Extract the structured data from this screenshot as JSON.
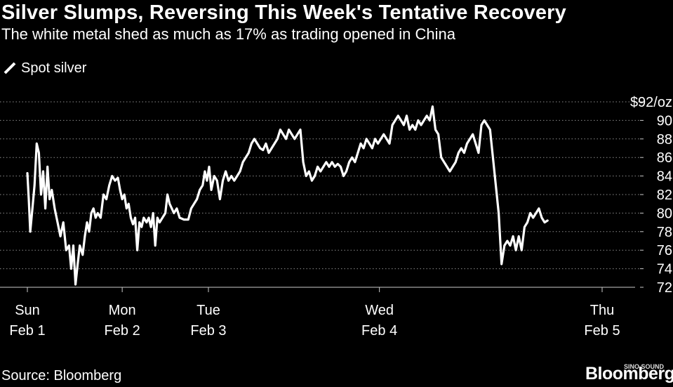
{
  "header": {
    "title": "Silver Slumps, Reversing This Week's Tentative Recovery",
    "subtitle": "The white metal shed as much as 17% as trading opened in China"
  },
  "legend": {
    "label": "Spot silver"
  },
  "footer": {
    "source": "Source: Bloomberg",
    "logo": "Bloomberg",
    "watermark": "SINO SOUND"
  },
  "colors": {
    "background": "#000000",
    "line": "#ffffff",
    "grid": "#8c8c8c",
    "text": "#ffffff"
  },
  "chart_data": {
    "type": "line",
    "title": "Silver Slumps, Reversing This Week's Tentative Recovery",
    "subtitle": "The white metal shed as much as 17% as trading opened in China",
    "xlabel": "",
    "ylabel": "$/oz",
    "ylim": [
      72,
      92
    ],
    "xlim": [
      -0.05,
      4.1
    ],
    "y_ticks": [
      72,
      74,
      76,
      78,
      80,
      82,
      84,
      86,
      88,
      90,
      92
    ],
    "y_tick_labels": [
      "72",
      "74",
      "76",
      "78",
      "80",
      "82",
      "84",
      "86",
      "88",
      "90",
      "$92/oz"
    ],
    "x_ticks": [
      {
        "x": 0.0,
        "day": "Sun",
        "date": "Feb 1"
      },
      {
        "x": 0.66,
        "day": "Mon",
        "date": "Feb 2"
      },
      {
        "x": 1.26,
        "day": "Tue",
        "date": "Feb 3"
      },
      {
        "x": 2.45,
        "day": "Wed",
        "date": "Feb 4"
      },
      {
        "x": 4.0,
        "day": "Thu",
        "date": "Feb 5"
      }
    ],
    "grid": true,
    "legend": "top-left",
    "series": [
      {
        "name": "Spot silver",
        "points": [
          [
            0.0,
            84.3
          ],
          [
            0.01,
            81.5
          ],
          [
            0.02,
            78.0
          ],
          [
            0.035,
            80.5
          ],
          [
            0.05,
            83.0
          ],
          [
            0.065,
            87.5
          ],
          [
            0.08,
            86.5
          ],
          [
            0.095,
            82.0
          ],
          [
            0.11,
            84.5
          ],
          [
            0.125,
            80.5
          ],
          [
            0.14,
            85.0
          ],
          [
            0.155,
            81.5
          ],
          [
            0.17,
            82.5
          ],
          [
            0.19,
            80.5
          ],
          [
            0.21,
            79.0
          ],
          [
            0.23,
            77.5
          ],
          [
            0.25,
            79.0
          ],
          [
            0.27,
            76.0
          ],
          [
            0.29,
            76.5
          ],
          [
            0.305,
            74.0
          ],
          [
            0.32,
            76.5
          ],
          [
            0.335,
            72.3
          ],
          [
            0.35,
            74.5
          ],
          [
            0.365,
            76.5
          ],
          [
            0.385,
            75.5
          ],
          [
            0.4,
            77.5
          ],
          [
            0.415,
            79.0
          ],
          [
            0.43,
            78.0
          ],
          [
            0.445,
            80.0
          ],
          [
            0.46,
            80.5
          ],
          [
            0.475,
            79.5
          ],
          [
            0.49,
            80.0
          ],
          [
            0.51,
            79.5
          ],
          [
            0.53,
            82.0
          ],
          [
            0.55,
            81.5
          ],
          [
            0.57,
            83.0
          ],
          [
            0.59,
            84.0
          ],
          [
            0.61,
            83.5
          ],
          [
            0.63,
            83.8
          ],
          [
            0.645,
            82.5
          ],
          [
            0.66,
            81.5
          ],
          [
            0.675,
            82.0
          ],
          [
            0.69,
            80.5
          ],
          [
            0.705,
            81.0
          ],
          [
            0.72,
            79.5
          ],
          [
            0.735,
            78.8
          ],
          [
            0.75,
            79.5
          ],
          [
            0.765,
            76.0
          ],
          [
            0.78,
            79.0
          ],
          [
            0.795,
            78.5
          ],
          [
            0.81,
            79.5
          ],
          [
            0.83,
            79.0
          ],
          [
            0.845,
            79.5
          ],
          [
            0.86,
            78.5
          ],
          [
            0.875,
            80.0
          ],
          [
            0.89,
            76.5
          ],
          [
            0.905,
            79.5
          ],
          [
            0.92,
            79.0
          ],
          [
            0.94,
            79.5
          ],
          [
            0.96,
            80.0
          ],
          [
            0.975,
            82.0
          ],
          [
            0.99,
            81.0
          ],
          [
            1.005,
            80.5
          ],
          [
            1.02,
            80.0
          ],
          [
            1.04,
            80.5
          ],
          [
            1.06,
            79.5
          ],
          [
            1.09,
            79.3
          ],
          [
            1.12,
            79.3
          ],
          [
            1.14,
            80.5
          ],
          [
            1.16,
            81.0
          ],
          [
            1.18,
            81.5
          ],
          [
            1.2,
            82.5
          ],
          [
            1.22,
            83.0
          ],
          [
            1.235,
            84.5
          ],
          [
            1.25,
            83.5
          ],
          [
            1.265,
            85.0
          ],
          [
            1.28,
            82.5
          ],
          [
            1.3,
            84.0
          ],
          [
            1.32,
            83.5
          ],
          [
            1.34,
            81.5
          ],
          [
            1.36,
            83.5
          ],
          [
            1.38,
            84.5
          ],
          [
            1.4,
            83.5
          ],
          [
            1.42,
            84.0
          ],
          [
            1.44,
            83.5
          ],
          [
            1.46,
            84.0
          ],
          [
            1.48,
            84.5
          ],
          [
            1.5,
            85.5
          ],
          [
            1.52,
            86.0
          ],
          [
            1.54,
            86.5
          ],
          [
            1.56,
            87.5
          ],
          [
            1.58,
            88.0
          ],
          [
            1.6,
            87.5
          ],
          [
            1.62,
            87.0
          ],
          [
            1.64,
            86.8
          ],
          [
            1.66,
            87.5
          ],
          [
            1.68,
            86.5
          ],
          [
            1.7,
            87.0
          ],
          [
            1.72,
            87.5
          ],
          [
            1.74,
            88.0
          ],
          [
            1.76,
            89.0
          ],
          [
            1.78,
            88.5
          ],
          [
            1.8,
            88.0
          ],
          [
            1.82,
            89.0
          ],
          [
            1.84,
            88.5
          ],
          [
            1.86,
            88.0
          ],
          [
            1.88,
            88.5
          ],
          [
            1.9,
            89.0
          ],
          [
            1.92,
            85.5
          ],
          [
            1.94,
            84.0
          ],
          [
            1.96,
            84.5
          ],
          [
            1.98,
            83.5
          ],
          [
            2.0,
            84.0
          ],
          [
            2.02,
            85.0
          ],
          [
            2.04,
            84.5
          ],
          [
            2.06,
            85.0
          ],
          [
            2.08,
            85.5
          ],
          [
            2.1,
            85.0
          ],
          [
            2.12,
            85.5
          ],
          [
            2.14,
            85.0
          ],
          [
            2.16,
            85.3
          ],
          [
            2.18,
            85.0
          ],
          [
            2.2,
            84.0
          ],
          [
            2.22,
            84.5
          ],
          [
            2.24,
            85.5
          ],
          [
            2.26,
            86.0
          ],
          [
            2.28,
            85.5
          ],
          [
            2.3,
            86.5
          ],
          [
            2.32,
            87.5
          ],
          [
            2.34,
            87.0
          ],
          [
            2.36,
            88.0
          ],
          [
            2.38,
            87.5
          ],
          [
            2.4,
            87.0
          ],
          [
            2.42,
            88.0
          ],
          [
            2.44,
            87.5
          ],
          [
            2.46,
            88.0
          ],
          [
            2.48,
            88.5
          ],
          [
            2.5,
            88.0
          ],
          [
            2.52,
            87.5
          ],
          [
            2.54,
            89.5
          ],
          [
            2.56,
            90.0
          ],
          [
            2.58,
            90.5
          ],
          [
            2.6,
            90.0
          ],
          [
            2.62,
            89.5
          ],
          [
            2.64,
            90.5
          ],
          [
            2.66,
            89.0
          ],
          [
            2.68,
            89.5
          ],
          [
            2.7,
            89.0
          ],
          [
            2.72,
            90.0
          ],
          [
            2.74,
            89.5
          ],
          [
            2.76,
            90.0
          ],
          [
            2.78,
            90.5
          ],
          [
            2.8,
            90.0
          ],
          [
            2.82,
            91.5
          ],
          [
            2.84,
            89.0
          ],
          [
            2.86,
            88.5
          ],
          [
            2.88,
            86.0
          ],
          [
            2.9,
            85.5
          ],
          [
            2.92,
            85.0
          ],
          [
            2.94,
            84.5
          ],
          [
            2.96,
            85.0
          ],
          [
            2.98,
            85.5
          ],
          [
            3.0,
            86.5
          ],
          [
            3.02,
            87.0
          ],
          [
            3.04,
            86.5
          ],
          [
            3.06,
            87.5
          ],
          [
            3.08,
            88.0
          ],
          [
            3.1,
            88.5
          ],
          [
            3.12,
            87.5
          ],
          [
            3.14,
            86.5
          ],
          [
            3.16,
            89.5
          ],
          [
            3.18,
            90.0
          ],
          [
            3.2,
            89.5
          ],
          [
            3.22,
            89.0
          ],
          [
            3.24,
            86.0
          ],
          [
            3.26,
            83.0
          ],
          [
            3.28,
            80.0
          ],
          [
            3.3,
            74.5
          ],
          [
            3.32,
            76.5
          ],
          [
            3.34,
            77.0
          ],
          [
            3.36,
            76.5
          ],
          [
            3.38,
            77.5
          ],
          [
            3.4,
            76.0
          ],
          [
            3.42,
            77.5
          ],
          [
            3.44,
            76.0
          ],
          [
            3.46,
            78.5
          ],
          [
            3.48,
            79.0
          ],
          [
            3.5,
            80.0
          ],
          [
            3.52,
            79.5
          ],
          [
            3.54,
            80.0
          ],
          [
            3.56,
            80.5
          ],
          [
            3.58,
            79.5
          ],
          [
            3.6,
            79.0
          ],
          [
            3.62,
            79.2
          ]
        ]
      }
    ]
  }
}
